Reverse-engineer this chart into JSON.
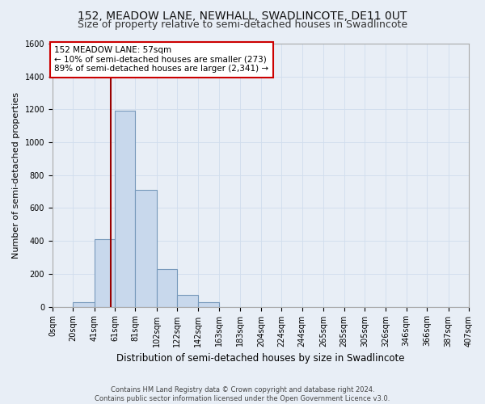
{
  "title": "152, MEADOW LANE, NEWHALL, SWADLINCOTE, DE11 0UT",
  "subtitle": "Size of property relative to semi-detached houses in Swadlincote",
  "xlabel": "Distribution of semi-detached houses by size in Swadlincote",
  "ylabel": "Number of semi-detached properties",
  "footer_line1": "Contains HM Land Registry data © Crown copyright and database right 2024.",
  "footer_line2": "Contains public sector information licensed under the Open Government Licence v3.0.",
  "bin_edges": [
    0,
    20,
    41,
    61,
    81,
    102,
    122,
    142,
    163,
    183,
    204,
    224,
    244,
    265,
    285,
    305,
    326,
    346,
    366,
    387,
    407
  ],
  "bar_heights": [
    0,
    25,
    410,
    1190,
    710,
    230,
    70,
    25,
    0,
    0,
    0,
    0,
    0,
    0,
    0,
    0,
    0,
    0,
    0,
    0
  ],
  "bar_color": "#c8d8ec",
  "bar_edge_color": "#7799bb",
  "vline_x": 57,
  "vline_color": "#990000",
  "annotation_text": "152 MEADOW LANE: 57sqm\n← 10% of semi-detached houses are smaller (273)\n89% of semi-detached houses are larger (2,341) →",
  "annotation_box_color": "#ffffff",
  "annotation_box_edge": "#cc0000",
  "ylim": [
    0,
    1600
  ],
  "yticks": [
    0,
    200,
    400,
    600,
    800,
    1000,
    1200,
    1400,
    1600
  ],
  "grid_color": "#d0dded",
  "bg_color": "#e8eef6",
  "title_fontsize": 10,
  "subtitle_fontsize": 9,
  "tick_label_fontsize": 7,
  "ylabel_fontsize": 8,
  "xlabel_fontsize": 8.5,
  "footer_fontsize": 6,
  "annotation_fontsize": 7.5
}
